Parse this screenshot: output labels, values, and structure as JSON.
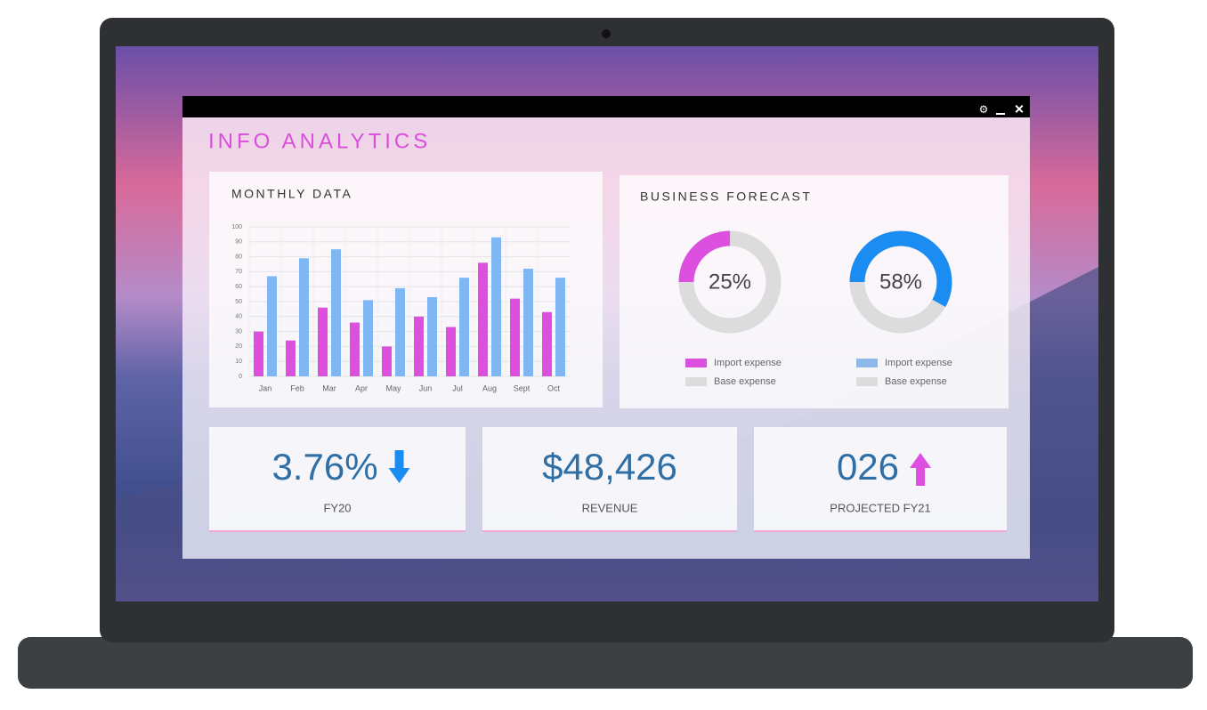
{
  "window": {
    "title": "INFO ANALYTICS"
  },
  "monthly": {
    "type": "bar",
    "title": "MONTHLY DATA",
    "categories": [
      "Jan",
      "Feb",
      "Mar",
      "Apr",
      "May",
      "Jun",
      "Jul",
      "Aug",
      "Sept",
      "Oct"
    ],
    "series": [
      {
        "color": "#dc4fdf",
        "values": [
          30,
          24,
          46,
          36,
          20,
          40,
          33,
          76,
          52,
          43
        ]
      },
      {
        "color": "#7fb7f2",
        "values": [
          67,
          79,
          85,
          51,
          59,
          53,
          66,
          93,
          72,
          66
        ]
      }
    ],
    "ylim": [
      0,
      100
    ],
    "yticks": [
      0,
      10,
      20,
      30,
      40,
      50,
      60,
      70,
      80,
      90,
      100
    ],
    "grid": true
  },
  "forecast": {
    "title": "BUSINESS FORECAST",
    "charts": [
      {
        "type": "pie",
        "values": [
          25
        ],
        "value_labels": [
          "25%"
        ],
        "color": "#dc4fdf",
        "base_color": "#dcdcdc",
        "legend": [
          {
            "label": "Import expense",
            "color": "#dc4fdf"
          },
          {
            "label": "Base expense",
            "color": "#dcdcdc"
          }
        ]
      },
      {
        "type": "pie",
        "values": [
          58
        ],
        "value_labels": [
          "58%"
        ],
        "color": "#1b8cf2",
        "base_color": "#dcdcdc",
        "legend": [
          {
            "label": "Import expense",
            "color": "#8fb8ea"
          },
          {
            "label": "Base expense",
            "color": "#dcdcdc"
          }
        ]
      }
    ]
  },
  "kpis": [
    {
      "value": "3.76%",
      "label": "FY20",
      "trend": "down",
      "trend_color": "#1b8cf2"
    },
    {
      "value": "$48,426",
      "label": "REVENUE"
    },
    {
      "value": "026",
      "label": "PROJECTED FY21",
      "trend": "up",
      "trend_color": "#dc4fdf"
    }
  ]
}
